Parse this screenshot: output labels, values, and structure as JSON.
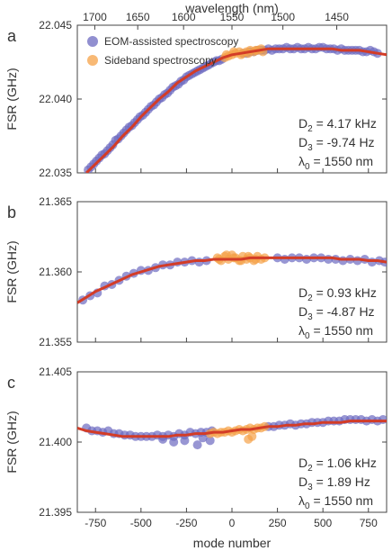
{
  "figure": {
    "top_axis_label": "wavelength (nm)",
    "bottom_axis_label": "mode number",
    "colors": {
      "eom": "#6c69c0",
      "sideband": "#f5a147",
      "fit": "#d33c27",
      "axis": "#444444"
    }
  },
  "chart_data": [
    {
      "type": "scatter",
      "panel": "a",
      "ylabel": "FSR (GHz)",
      "xlim": [
        -850,
        850
      ],
      "ylim": [
        22.035,
        22.045
      ],
      "yticks": [
        "22.035",
        "22.040",
        "22.045"
      ],
      "xticks": [
        -750,
        -500,
        -250,
        0,
        250,
        500,
        750
      ],
      "top_ticks_nm": [
        "1700",
        "1650",
        "1600",
        "1550",
        "1500",
        "1450"
      ],
      "top_ticks_mode": [
        -754,
        -518,
        -266,
        0,
        280,
        576
      ],
      "legend": {
        "position": "top-left",
        "entries": [
          "EOM-assisted spectroscopy",
          "Sideband spectroscopy"
        ]
      },
      "annotations": {
        "D": "D",
        "D2_sub": "2",
        "D2_val": " = 4.17 kHz",
        "D3_sub": "3",
        "D3_val": " = -9.74 Hz",
        "lambda": "λ",
        "lambda_sub": "0",
        "lambda_val": " = 1550 nm"
      },
      "fit": {
        "x": [
          -800,
          -750,
          -700,
          -650,
          -600,
          -550,
          -500,
          -450,
          -400,
          -350,
          -300,
          -250,
          -200,
          -150,
          -100,
          -50,
          0,
          50,
          100,
          150,
          200,
          250,
          300,
          350,
          400,
          450,
          500,
          550,
          600,
          650,
          700,
          750,
          800,
          850
        ],
        "y": [
          22.035,
          22.0356,
          22.0362,
          22.0368,
          22.0375,
          22.0381,
          22.0388,
          22.0394,
          22.04,
          22.0405,
          22.0411,
          22.0415,
          22.0419,
          22.0422,
          22.0425,
          22.0428,
          22.043,
          22.0431,
          22.0432,
          22.0433,
          22.0434,
          22.0434,
          22.0434,
          22.0434,
          22.0434,
          22.0434,
          22.0434,
          22.0434,
          22.0433,
          22.0433,
          22.0433,
          22.0432,
          22.0431,
          22.043
        ]
      },
      "series": [
        {
          "name": "EOM-assisted spectroscopy",
          "x": [
            -790,
            -775,
            -760,
            -745,
            -730,
            -715,
            -700,
            -685,
            -670,
            -655,
            -640,
            -625,
            -610,
            -595,
            -580,
            -565,
            -550,
            -535,
            -520,
            -505,
            -490,
            -475,
            -460,
            -445,
            -430,
            -415,
            -400,
            -385,
            -370,
            -355,
            -340,
            -325,
            -310,
            -295,
            -280,
            -265,
            -250,
            -235,
            -220,
            -205,
            -190,
            -175,
            -160,
            -145,
            -130,
            -115,
            -100,
            -85,
            -70,
            -55,
            60,
            80,
            100,
            120,
            140,
            160,
            180,
            200,
            220,
            240,
            260,
            280,
            300,
            320,
            340,
            360,
            380,
            400,
            420,
            440,
            460,
            480,
            500,
            520,
            540,
            560,
            580,
            600,
            620,
            640,
            660,
            680,
            700,
            720,
            740,
            760,
            780,
            800
          ],
          "y": [
            22.0352,
            22.0354,
            22.0356,
            22.0358,
            22.036,
            22.0362,
            22.0363,
            22.0365,
            22.0367,
            22.0369,
            22.0372,
            22.0373,
            22.0375,
            22.0377,
            22.0379,
            22.0381,
            22.0382,
            22.0384,
            22.0386,
            22.0388,
            22.0389,
            22.0391,
            22.0393,
            22.0395,
            22.0396,
            22.0398,
            22.04,
            22.0401,
            22.0403,
            22.0404,
            22.0406,
            22.0408,
            22.0409,
            22.041,
            22.0412,
            22.0413,
            22.0415,
            22.0416,
            22.0417,
            22.0418,
            22.0419,
            22.042,
            22.0421,
            22.0422,
            22.0423,
            22.0424,
            22.0425,
            22.0426,
            22.0426,
            22.0427,
            22.0431,
            22.0431,
            22.0432,
            22.0432,
            22.0433,
            22.0433,
            22.0433,
            22.0434,
            22.0433,
            22.0434,
            22.0434,
            22.0434,
            22.0435,
            22.0434,
            22.0434,
            22.0435,
            22.0434,
            22.0434,
            22.0435,
            22.0434,
            22.0434,
            22.0435,
            22.0435,
            22.0434,
            22.0434,
            22.0434,
            22.0433,
            22.0434,
            22.0433,
            22.0433,
            22.0433,
            22.0433,
            22.0433,
            22.0432,
            22.0432,
            22.0433,
            22.0432,
            22.0431
          ]
        },
        {
          "name": "Sideband spectroscopy",
          "x": [
            -40,
            -20,
            0,
            20,
            40,
            60,
            80,
            100,
            120,
            140,
            160,
            -30,
            10,
            50,
            90,
            130,
            170
          ],
          "y": [
            22.0428,
            22.0429,
            22.043,
            22.0431,
            22.0432,
            22.0431,
            22.0432,
            22.0433,
            22.0432,
            22.0433,
            22.0434,
            22.043,
            22.0432,
            22.043,
            22.0431,
            22.0433,
            22.0432
          ]
        }
      ]
    },
    {
      "type": "scatter",
      "panel": "b",
      "ylabel": "FSR (GHz)",
      "xlim": [
        -850,
        850
      ],
      "ylim": [
        21.355,
        21.365
      ],
      "yticks": [
        "21.355",
        "21.360",
        "21.365"
      ],
      "xticks": [
        -750,
        -500,
        -250,
        0,
        250,
        500,
        750
      ],
      "annotations": {
        "D": "D",
        "D2_sub": "2",
        "D2_val": " = 0.93 kHz",
        "D3_sub": "3",
        "D3_val": " = -4.87 Hz",
        "lambda": "λ",
        "lambda_sub": "0",
        "lambda_val": " = 1550 nm"
      },
      "fit": {
        "x": [
          -850,
          -800,
          -750,
          -700,
          -650,
          -600,
          -550,
          -500,
          -450,
          -400,
          -350,
          -300,
          -250,
          -200,
          -150,
          -100,
          -50,
          0,
          50,
          100,
          150,
          200,
          250,
          300,
          350,
          400,
          450,
          500,
          550,
          600,
          650,
          700,
          750,
          800,
          850
        ],
        "y": [
          21.3578,
          21.3582,
          21.3586,
          21.3589,
          21.3592,
          21.3595,
          21.3598,
          21.36,
          21.3602,
          21.3604,
          21.3605,
          21.3606,
          21.3607,
          21.3608,
          21.3608,
          21.3609,
          21.3609,
          21.3609,
          21.3609,
          21.361,
          21.361,
          21.361,
          21.361,
          21.361,
          21.361,
          21.361,
          21.361,
          21.361,
          21.361,
          21.3609,
          21.3609,
          21.3609,
          21.3608,
          21.3608,
          21.3607
        ]
      },
      "series": [
        {
          "name": "EOM-assisted spectroscopy",
          "x": [
            -820,
            -780,
            -740,
            -700,
            -660,
            -620,
            -580,
            -540,
            -500,
            -460,
            -420,
            -380,
            -340,
            -300,
            -260,
            -220,
            -180,
            -140,
            250,
            290,
            330,
            370,
            410,
            450,
            490,
            530,
            570,
            610,
            650,
            690,
            730,
            770,
            810,
            840
          ],
          "y": [
            21.358,
            21.3583,
            21.3585,
            21.359,
            21.3591,
            21.3594,
            21.3597,
            21.3599,
            21.3601,
            21.3601,
            21.3603,
            21.3605,
            21.3605,
            21.3607,
            21.3607,
            21.3608,
            21.3607,
            21.3608,
            21.361,
            21.3609,
            21.361,
            21.361,
            21.3609,
            21.361,
            21.361,
            21.3609,
            21.3609,
            21.3608,
            21.3609,
            21.3608,
            21.3609,
            21.3607,
            21.3608,
            21.3607
          ]
        },
        {
          "name": "Sideband spectroscopy",
          "x": [
            -80,
            -60,
            -40,
            -20,
            0,
            20,
            40,
            60,
            80,
            100,
            120,
            140,
            160,
            180,
            -70,
            -30,
            10,
            50,
            90,
            130
          ],
          "y": [
            21.361,
            21.3608,
            21.3611,
            21.3609,
            21.3612,
            21.361,
            21.3608,
            21.3611,
            21.3609,
            21.361,
            21.3608,
            21.3611,
            21.3609,
            21.361,
            21.3609,
            21.3612,
            21.361,
            21.3608,
            21.3611,
            21.3609
          ]
        }
      ]
    },
    {
      "type": "scatter",
      "panel": "c",
      "ylabel": "FSR (GHz)",
      "xlim": [
        -850,
        850
      ],
      "ylim": [
        21.395,
        21.405
      ],
      "yticks": [
        "21.395",
        "21.400",
        "21.405"
      ],
      "xticks": [
        -750,
        -500,
        -250,
        0,
        250,
        500,
        750
      ],
      "annotations": {
        "D": "D",
        "D2_sub": "2",
        "D2_val": " = 1.06 kHz",
        "D3_sub": "3",
        "D3_val": " = 1.89 Hz",
        "lambda": "λ",
        "lambda_sub": "0",
        "lambda_val": " = 1550 nm"
      },
      "fit": {
        "x": [
          -850,
          -800,
          -750,
          -700,
          -650,
          -600,
          -550,
          -500,
          -450,
          -400,
          -350,
          -300,
          -250,
          -200,
          -150,
          -100,
          -50,
          0,
          50,
          100,
          150,
          200,
          250,
          300,
          350,
          400,
          450,
          500,
          550,
          600,
          650,
          700,
          750,
          800,
          850
        ],
        "y": [
          21.401,
          21.4008,
          21.4007,
          21.4006,
          21.4005,
          21.4004,
          21.4004,
          21.4004,
          21.4004,
          21.4004,
          21.4004,
          21.4005,
          21.4005,
          21.4006,
          21.4006,
          21.4007,
          21.4007,
          21.4008,
          21.4009,
          21.4009,
          21.401,
          21.4011,
          21.4011,
          21.4012,
          21.4012,
          21.4013,
          21.4013,
          21.4014,
          21.4014,
          21.4014,
          21.4015,
          21.4015,
          21.4015,
          21.4015,
          21.4015
        ]
      },
      "series": [
        {
          "name": "EOM-assisted spectroscopy",
          "x": [
            -800,
            -770,
            -740,
            -710,
            -680,
            -650,
            -620,
            -590,
            -560,
            -530,
            -500,
            -470,
            -440,
            -410,
            -380,
            -350,
            -320,
            -290,
            -260,
            -230,
            -200,
            -170,
            -140,
            -110,
            -380,
            -320,
            -260,
            -190,
            -160,
            -120,
            200,
            230,
            260,
            290,
            320,
            350,
            380,
            410,
            440,
            470,
            500,
            530,
            560,
            590,
            620,
            650,
            680,
            710,
            740,
            770,
            800,
            830
          ],
          "y": [
            21.401,
            21.4008,
            21.4008,
            21.4007,
            21.4008,
            21.4006,
            21.4006,
            21.4005,
            21.4005,
            21.4004,
            21.4004,
            21.4004,
            21.4004,
            21.4005,
            21.4004,
            21.4005,
            21.4004,
            21.4006,
            21.4005,
            21.4007,
            21.4006,
            21.4007,
            21.4007,
            21.4008,
            21.4002,
            21.4,
            21.4001,
            21.3998,
            21.4003,
            21.4001,
            21.4011,
            21.4011,
            21.4012,
            21.4012,
            21.4013,
            21.4012,
            21.4013,
            21.4013,
            21.4014,
            21.4014,
            21.4014,
            21.4015,
            21.4015,
            21.4015,
            21.4016,
            21.4016,
            21.4016,
            21.4016,
            21.4015,
            21.4016,
            21.4015,
            21.4016
          ]
        },
        {
          "name": "Sideband spectroscopy",
          "x": [
            -120,
            -100,
            -80,
            -60,
            -40,
            -20,
            0,
            20,
            40,
            60,
            80,
            100,
            120,
            140,
            160,
            180,
            90,
            110
          ],
          "y": [
            21.4006,
            21.4007,
            21.4006,
            21.4007,
            21.4007,
            21.4008,
            21.4007,
            21.4008,
            21.4009,
            21.4008,
            21.4009,
            21.401,
            21.4009,
            21.401,
            21.401,
            21.4011,
            21.4002,
            21.4004
          ]
        }
      ]
    }
  ]
}
